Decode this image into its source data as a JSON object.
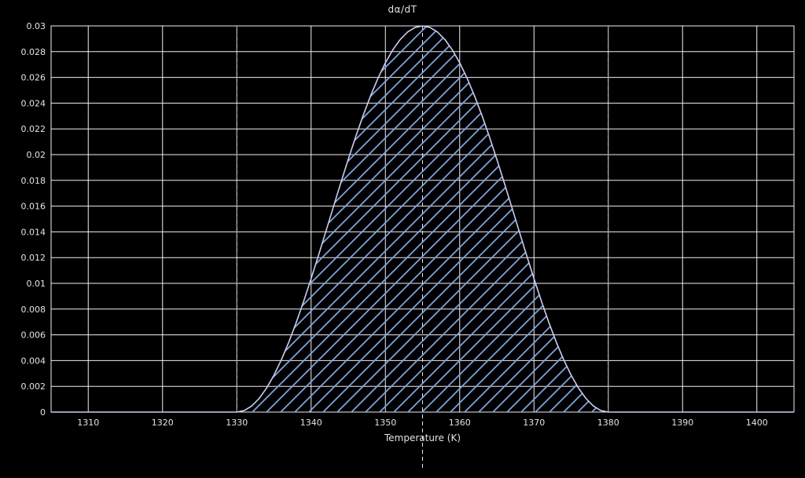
{
  "chart_data": {
    "type": "area",
    "title": "dα/dT",
    "xlabel": "Temperature (K)",
    "ylabel": "",
    "xlim": [
      1305,
      1405
    ],
    "ylim": [
      0,
      0.03
    ],
    "grid": true,
    "legend": "none",
    "colors": {
      "background": "#000000",
      "grid": "#f0f0f0",
      "axis_text": "#e3e3e3",
      "curve": "#ccccf2",
      "hatch": "#7fa3dc",
      "marker_dash": "#9b9b9b",
      "center_dash": "#e8e8e8"
    },
    "x_ticks": [
      {
        "value": 1310,
        "label": "1310"
      },
      {
        "value": 1320,
        "label": "1320"
      },
      {
        "value": 1330,
        "label": "1330"
      },
      {
        "value": 1340,
        "label": "1340"
      },
      {
        "value": 1350,
        "label": "1350"
      },
      {
        "value": 1360,
        "label": "1360"
      },
      {
        "value": 1370,
        "label": "1370"
      },
      {
        "value": 1380,
        "label": "1380"
      },
      {
        "value": 1390,
        "label": "1390"
      },
      {
        "value": 1400,
        "label": "1400"
      }
    ],
    "y_ticks": [
      {
        "value": 0,
        "label": "0"
      },
      {
        "value": 0.002,
        "label": "0.002"
      },
      {
        "value": 0.004,
        "label": "0.004"
      },
      {
        "value": 0.006,
        "label": "0.006"
      },
      {
        "value": 0.008,
        "label": "0.008"
      },
      {
        "value": 0.01,
        "label": "0.01"
      },
      {
        "value": 0.012,
        "label": "0.012"
      },
      {
        "value": 0.014,
        "label": "0.014"
      },
      {
        "value": 0.016,
        "label": "0.016"
      },
      {
        "value": 0.018,
        "label": "0.018"
      },
      {
        "value": 0.02,
        "label": "0.02"
      },
      {
        "value": 0.022,
        "label": "0.022"
      },
      {
        "value": 0.024,
        "label": "0.024"
      },
      {
        "value": 0.026,
        "label": "0.026"
      },
      {
        "value": 0.028,
        "label": "0.028"
      },
      {
        "value": 0.03,
        "label": "0.03"
      }
    ],
    "series": [
      {
        "name": "dα/dT",
        "points": [
          [
            1305,
            0
          ],
          [
            1330,
            0
          ],
          [
            1331,
            0.000118
          ],
          [
            1332,
            0.000471
          ],
          [
            1333,
            0.001053
          ],
          [
            1334,
            0.001855
          ],
          [
            1335,
            0.002865
          ],
          [
            1336,
            0.004065
          ],
          [
            1337,
            0.005439
          ],
          [
            1338,
            0.006963
          ],
          [
            1339,
            0.008613
          ],
          [
            1340,
            0.010365
          ],
          [
            1341,
            0.012189
          ],
          [
            1342,
            0.014058
          ],
          [
            1343,
            0.015942
          ],
          [
            1344,
            0.017811
          ],
          [
            1345,
            0.019635
          ],
          [
            1346,
            0.021387
          ],
          [
            1347,
            0.023037
          ],
          [
            1348,
            0.024561
          ],
          [
            1349,
            0.025935
          ],
          [
            1350,
            0.027135
          ],
          [
            1351,
            0.028145
          ],
          [
            1352,
            0.028947
          ],
          [
            1353,
            0.029529
          ],
          [
            1354,
            0.029882
          ],
          [
            1355,
            0.03
          ],
          [
            1356,
            0.029882
          ],
          [
            1357,
            0.029529
          ],
          [
            1358,
            0.028947
          ],
          [
            1359,
            0.028145
          ],
          [
            1360,
            0.027135
          ],
          [
            1361,
            0.025935
          ],
          [
            1362,
            0.024561
          ],
          [
            1363,
            0.023037
          ],
          [
            1364,
            0.021387
          ],
          [
            1365,
            0.019635
          ],
          [
            1366,
            0.017811
          ],
          [
            1367,
            0.015942
          ],
          [
            1368,
            0.014058
          ],
          [
            1369,
            0.012189
          ],
          [
            1370,
            0.010365
          ],
          [
            1371,
            0.008613
          ],
          [
            1372,
            0.006963
          ],
          [
            1373,
            0.005439
          ],
          [
            1374,
            0.004065
          ],
          [
            1375,
            0.002865
          ],
          [
            1376,
            0.001855
          ],
          [
            1377,
            0.001053
          ],
          [
            1378,
            0.000471
          ],
          [
            1379,
            0.000118
          ],
          [
            1380,
            0
          ],
          [
            1405,
            0
          ]
        ]
      }
    ],
    "vlines": [
      {
        "x": 1330,
        "style": "dashed",
        "role": "transition-start",
        "extends_below_axis": false
      },
      {
        "x": 1355,
        "style": "dashed",
        "role": "transition-center",
        "extends_below_axis": true
      },
      {
        "x": 1380,
        "style": "dashed",
        "role": "transition-end",
        "extends_below_axis": false
      }
    ],
    "hatch_region": {
      "x_range": [
        1330,
        1380
      ],
      "pattern": "diagonal-lines"
    }
  }
}
